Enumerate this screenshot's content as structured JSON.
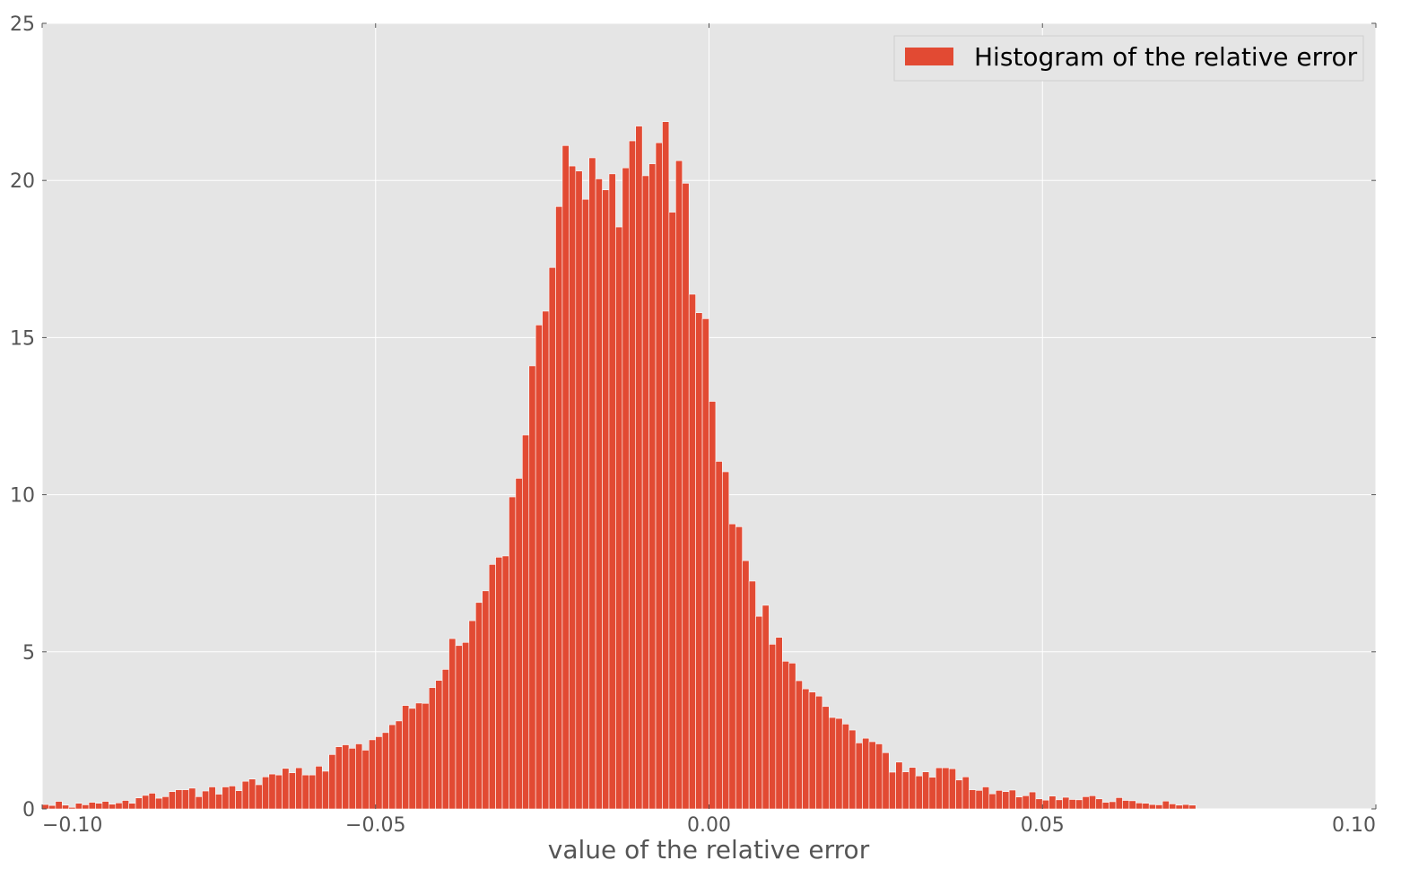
{
  "chart_data": {
    "type": "bar",
    "xlabel": "value of the relative error",
    "ylabel": "",
    "xlim": [
      -0.1,
      0.1
    ],
    "ylim": [
      0,
      25
    ],
    "x_ticks": [
      "−0.10",
      "−0.05",
      "0.00",
      "0.05",
      "0.10"
    ],
    "y_ticks": [
      "0",
      "5",
      "10",
      "15",
      "20",
      "25"
    ],
    "grid": true,
    "legend_position": "top-right",
    "bin_width": 0.001,
    "bin_start": -0.1,
    "series": [
      {
        "name": "Histogram of the relative error",
        "color": "#E24A33",
        "values": [
          0.14,
          0.11,
          0.24,
          0.12,
          0.05,
          0.18,
          0.13,
          0.21,
          0.18,
          0.24,
          0.15,
          0.19,
          0.27,
          0.18,
          0.35,
          0.43,
          0.5,
          0.34,
          0.39,
          0.55,
          0.61,
          0.61,
          0.66,
          0.39,
          0.57,
          0.7,
          0.47,
          0.7,
          0.73,
          0.58,
          0.88,
          0.95,
          0.77,
          1.02,
          1.11,
          1.08,
          1.29,
          1.15,
          1.31,
          1.08,
          1.08,
          1.36,
          1.2,
          1.73,
          1.98,
          2.04,
          1.93,
          2.07,
          1.87,
          2.2,
          2.3,
          2.43,
          2.68,
          2.8,
          3.29,
          3.2,
          3.37,
          3.36,
          3.86,
          4.09,
          4.44,
          5.42,
          5.2,
          5.3,
          5.99,
          6.57,
          6.94,
          7.78,
          8.01,
          8.05,
          9.93,
          10.52,
          11.9,
          14.1,
          15.4,
          15.84,
          17.23,
          19.17,
          21.11,
          20.46,
          20.3,
          19.4,
          20.72,
          20.05,
          19.7,
          20.21,
          18.52,
          20.4,
          21.26,
          21.73,
          20.15,
          20.53,
          21.2,
          21.87,
          18.99,
          20.63,
          19.91,
          16.38,
          15.79,
          15.6,
          12.97,
          11.06,
          10.73,
          9.07,
          8.98,
          7.9,
          7.25,
          6.13,
          6.48,
          5.24,
          5.46,
          4.7,
          4.64,
          4.08,
          3.82,
          3.72,
          3.59,
          3.26,
          2.91,
          2.88,
          2.7,
          2.51,
          2.1,
          2.25,
          2.14,
          2.07,
          1.79,
          1.17,
          1.49,
          1.18,
          1.32,
          1.05,
          1.18,
          1.01,
          1.31,
          1.31,
          1.28,
          0.92,
          1.02,
          0.61,
          0.59,
          0.7,
          0.48,
          0.59,
          0.55,
          0.6,
          0.38,
          0.42,
          0.54,
          0.32,
          0.28,
          0.41,
          0.29,
          0.37,
          0.3,
          0.29,
          0.39,
          0.42,
          0.32,
          0.21,
          0.23,
          0.36,
          0.27,
          0.26,
          0.19,
          0.18,
          0.14,
          0.13,
          0.25,
          0.16,
          0.12,
          0.14,
          0.12
        ]
      }
    ]
  }
}
